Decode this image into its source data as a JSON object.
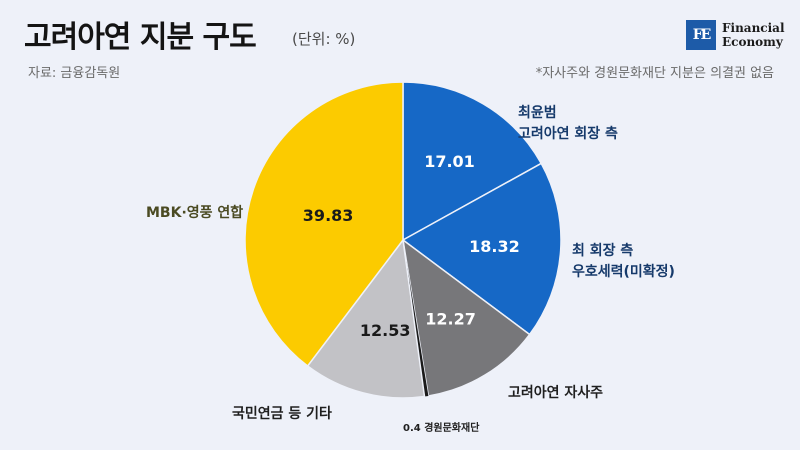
{
  "header": {
    "title": "고려아연 지분 구도",
    "unit": "(단위: %)",
    "source": "자료: 금융감독원",
    "footnote": "*자사주와 경원문화재단 지분은 의결권 없음"
  },
  "logo": {
    "mark": "FE",
    "line1": "Financial",
    "line2": "Economy"
  },
  "chart_data": {
    "type": "pie",
    "start": "12 o'clock, clockwise",
    "slices": [
      {
        "label": [
          "최윤범",
          "고려아연 회장 측"
        ],
        "value": 17.01,
        "color": "#1668c6",
        "value_color": "#ffffff"
      },
      {
        "label": [
          "최 회장 측",
          "우호세력(미확정)"
        ],
        "value": 18.32,
        "color": "#1668c6",
        "value_color": "#ffffff"
      },
      {
        "label": [
          "고려아연 자사주"
        ],
        "value": 12.27,
        "color": "#77777a",
        "value_color": "#ffffff"
      },
      {
        "label": [
          "0.4 경원문화재단"
        ],
        "value": 0.4,
        "color": "#1a1a1a",
        "value_color": "#1a1a1a"
      },
      {
        "label": [
          "국민연금 등 기타"
        ],
        "value": 12.53,
        "color": "#c2c2c6",
        "value_color": "#1a1a1a"
      },
      {
        "label": [
          "MBK·영풍 연합"
        ],
        "value": 39.83,
        "color": "#fccb00",
        "value_color": "#1a1a1a"
      }
    ]
  }
}
